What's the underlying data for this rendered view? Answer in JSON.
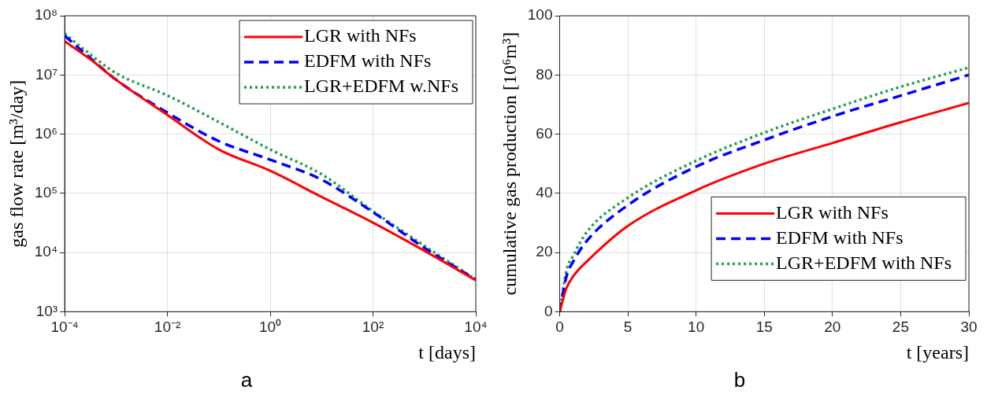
{
  "chart_data": [
    {
      "type": "line",
      "xlabel": "t [days]",
      "ylabel": "gas flow rate [m³/day]",
      "annotations": [
        "a"
      ],
      "log": "xy",
      "grid": true,
      "legend": "top right",
      "xlim": [
        0.0001,
        10000
      ],
      "ylim": [
        1000,
        100000000
      ],
      "xticks": [
        {
          "value": 0.0001,
          "label": "10⁻⁴"
        },
        {
          "value": 0.01,
          "label": "10⁻²"
        },
        {
          "value": 1,
          "label": "10⁰"
        },
        {
          "value": 100,
          "label": "10²"
        },
        {
          "value": 10000,
          "label": "10⁴"
        }
      ],
      "yticks": [
        {
          "value": 1000,
          "label": "10³"
        },
        {
          "value": 10000,
          "label": "10⁴"
        },
        {
          "value": 100000,
          "label": "10⁵"
        },
        {
          "value": 1000000,
          "label": "10⁶"
        },
        {
          "value": 10000000,
          "label": "10⁷"
        },
        {
          "value": 100000000,
          "label": "10⁸"
        }
      ],
      "x": [
        0.0001,
        0.0003,
        0.001,
        0.01,
        0.1,
        1,
        10,
        100,
        1000,
        10000
      ],
      "series": [
        {
          "name": "LGR with NFs",
          "color": "#ff0000",
          "line_style": "solid",
          "values": [
            37000000,
            19000000,
            8300000,
            2100000,
            550000,
            240000,
            87000,
            32000,
            10700,
            3400
          ]
        },
        {
          "name": "EDFM with NFs",
          "color": "#0000ff",
          "line_style": "dashed",
          "values": [
            46000000,
            20000000,
            8300000,
            2300000,
            760000,
            370000,
            170000,
            48000,
            12000,
            3500
          ]
        },
        {
          "name": "LGR+EDFM w.NFs",
          "color": "#1fa050",
          "line_style": "dotted",
          "values": [
            50000000,
            23000000,
            10700000,
            4500000,
            1600000,
            550000,
            210000,
            50000,
            13000,
            3500
          ]
        }
      ]
    },
    {
      "type": "line",
      "xlabel": "t [years]",
      "ylabel": "cumulative gas production [10⁶m³]",
      "annotations": [
        "b"
      ],
      "grid": true,
      "legend": "bottom right",
      "xlim": [
        0,
        30
      ],
      "ylim": [
        0,
        100
      ],
      "xticks": [
        0,
        5,
        10,
        15,
        20,
        25,
        30
      ],
      "yticks": [
        0,
        20,
        40,
        60,
        80,
        100
      ],
      "x": [
        0,
        0.5,
        1,
        2,
        5,
        10,
        15,
        20,
        25,
        30
      ],
      "series": [
        {
          "name": "LGR with NFs",
          "color": "#ff0000",
          "line_style": "solid",
          "values": [
            0,
            8,
            12,
            17,
            29,
            41,
            50,
            57,
            64,
            70.5
          ]
        },
        {
          "name": "EDFM with NFs",
          "color": "#0000ff",
          "line_style": "dashed",
          "values": [
            0,
            12,
            17,
            24,
            36,
            49,
            58,
            66,
            73,
            80
          ]
        },
        {
          "name": "LGR+EDFM with NFs",
          "color": "#1fa050",
          "line_style": "dotted",
          "values": [
            0,
            14,
            19,
            27,
            38.5,
            51,
            60.5,
            68.5,
            76,
            82.5
          ]
        }
      ]
    }
  ]
}
